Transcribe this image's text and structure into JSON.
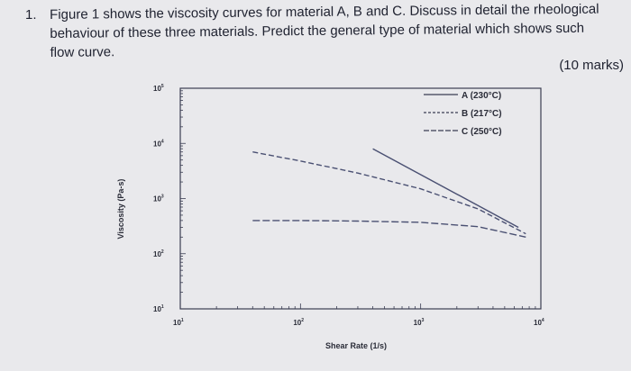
{
  "question": {
    "number": "1.",
    "line1": "Figure 1 shows the viscosity curves for material A, B and C. Discuss in detail the rheological",
    "line2": "behaviour of these three materials. Predict the general type of material which shows such",
    "line3": "flow curve.",
    "marks": "(10 marks)"
  },
  "chart_data": {
    "type": "line",
    "title": "",
    "xlabel": "Shear Rate (1/s)",
    "ylabel": "Viscosity (Pa-s)",
    "x_scale": "log",
    "y_scale": "log",
    "xlim": [
      10,
      10000
    ],
    "ylim": [
      10,
      100000
    ],
    "x_ticks": [
      {
        "value": 10,
        "base": "10",
        "exp": "1"
      },
      {
        "value": 100,
        "base": "10",
        "exp": "2"
      },
      {
        "value": 1000,
        "base": "10",
        "exp": "3"
      },
      {
        "value": 10000,
        "base": "10",
        "exp": "4"
      }
    ],
    "y_ticks": [
      {
        "value": 100000,
        "base": "10",
        "exp": "5"
      },
      {
        "value": 10000,
        "base": "10",
        "exp": "4"
      },
      {
        "value": 1000,
        "base": "10",
        "exp": "3"
      },
      {
        "value": 100,
        "base": "10",
        "exp": "2"
      },
      {
        "value": 10,
        "base": "10",
        "exp": "1"
      }
    ],
    "legend_position": "top-right",
    "series": [
      {
        "name": "A (230°C)",
        "style": "solid",
        "x": [
          400,
          6500
        ],
        "y": [
          8000,
          300
        ]
      },
      {
        "name": "B (217°C)",
        "style": "dashed",
        "x": [
          40,
          100,
          300,
          1000,
          3000,
          7500
        ],
        "y": [
          7000,
          4800,
          2900,
          1500,
          650,
          230
        ]
      },
      {
        "name": "C (250°C)",
        "style": "dashed",
        "x": [
          40,
          100,
          300,
          1000,
          3000,
          7500
        ],
        "y": [
          400,
          400,
          390,
          370,
          310,
          200
        ]
      }
    ],
    "grid": false
  }
}
